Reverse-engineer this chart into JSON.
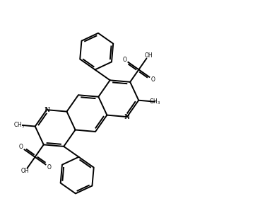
{
  "figsize": [
    3.68,
    3.08
  ],
  "dpi": 100,
  "bg": "#ffffff",
  "lc": "black",
  "lw": 1.4,
  "xlim": [
    0,
    10
  ],
  "ylim": [
    0,
    10
  ],
  "off": 0.09,
  "sh": 0.12
}
